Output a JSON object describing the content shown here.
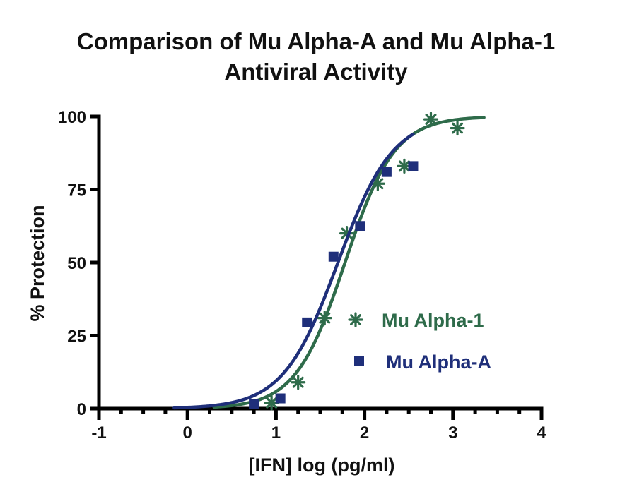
{
  "chart_data": {
    "type": "scatter",
    "title_lines": [
      "Comparison of Mu Alpha-A and Mu Alpha-1",
      "Antiviral Activity"
    ],
    "xlabel": "[IFN] log (pg/ml)",
    "ylabel": "% Protection",
    "xlim": [
      -1,
      4
    ],
    "ylim": [
      0,
      100
    ],
    "x_ticks": [
      -1,
      0,
      1,
      2,
      3,
      4
    ],
    "x_minor_ticks": [
      -0.75,
      -0.5,
      -0.25,
      0.25,
      0.5,
      0.75,
      1.25,
      1.5,
      1.75,
      2.25,
      2.5,
      2.75,
      3.25,
      3.5,
      3.75
    ],
    "y_ticks": [
      0,
      25,
      50,
      75,
      100
    ],
    "x_tick_labels": [
      "-1",
      "0",
      "1",
      "2",
      "3",
      "4"
    ],
    "y_tick_labels": [
      "0",
      "25",
      "50",
      "75",
      "100"
    ],
    "legend_position": "center-right",
    "grid": false,
    "series": [
      {
        "name": "Mu Alpha-1",
        "color": "#2e6b4a",
        "marker": "asterisk",
        "points": [
          {
            "x": 0.95,
            "y": 2
          },
          {
            "x": 1.25,
            "y": 9
          },
          {
            "x": 1.55,
            "y": 31
          },
          {
            "x": 1.8,
            "y": 60
          },
          {
            "x": 2.15,
            "y": 77
          },
          {
            "x": 2.45,
            "y": 83
          },
          {
            "x": 2.75,
            "y": 99
          },
          {
            "x": 3.05,
            "y": 96
          }
        ],
        "fit_curve": {
          "bottom": 0,
          "top": 100,
          "log_ec50": 1.78,
          "hill_slope": 1.55,
          "x_range": [
            0.3,
            3.35
          ]
        }
      },
      {
        "name": "Mu Alpha-A",
        "color": "#1f2f7a",
        "marker": "square",
        "points": [
          {
            "x": 0.75,
            "y": 1.5
          },
          {
            "x": 1.05,
            "y": 3.5
          },
          {
            "x": 1.35,
            "y": 29.5
          },
          {
            "x": 1.65,
            "y": 52
          },
          {
            "x": 1.95,
            "y": 62.5
          },
          {
            "x": 2.25,
            "y": 81
          },
          {
            "x": 2.55,
            "y": 83
          }
        ],
        "fit_curve": {
          "bottom": 0,
          "top": 100,
          "log_ec50": 1.7,
          "hill_slope": 1.4,
          "x_range": [
            -0.15,
            2.55
          ]
        }
      }
    ]
  }
}
